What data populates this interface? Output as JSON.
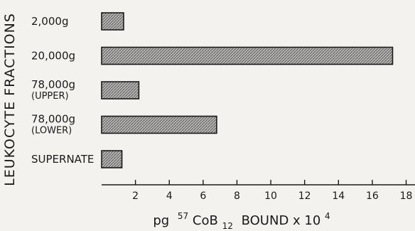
{
  "chart_data": {
    "type": "bar",
    "orientation": "horizontal",
    "title": "",
    "ylabel": "LEUKOCYTE FRACTIONS",
    "xlabel": {
      "prefix": "pg",
      "superscript": "57",
      "element": "CoB",
      "subscript": "12",
      "suffix": "BOUND x 10",
      "exponent": "4"
    },
    "categories": [
      [
        "2,000g"
      ],
      [
        "20,000g"
      ],
      [
        "78,000g",
        "(UPPER)"
      ],
      [
        "78,000g",
        "(LOWER)"
      ],
      [
        "SUPERNATE"
      ]
    ],
    "values": [
      1.3,
      17.2,
      2.2,
      6.8,
      1.2
    ],
    "xlim": [
      0,
      17.6
    ],
    "xticks": [
      "2",
      "4",
      "6",
      "8",
      "10",
      "12",
      "14",
      "16",
      "18"
    ],
    "xtick_values": [
      2,
      4,
      6,
      8,
      10,
      12,
      14,
      16,
      18
    ],
    "grid": false,
    "legend": "none",
    "bar_fill": "hatched gray",
    "colors": {
      "ink": "#1a1a1a",
      "background": "#f4f2ee",
      "bar": "#9a9a9a"
    }
  }
}
